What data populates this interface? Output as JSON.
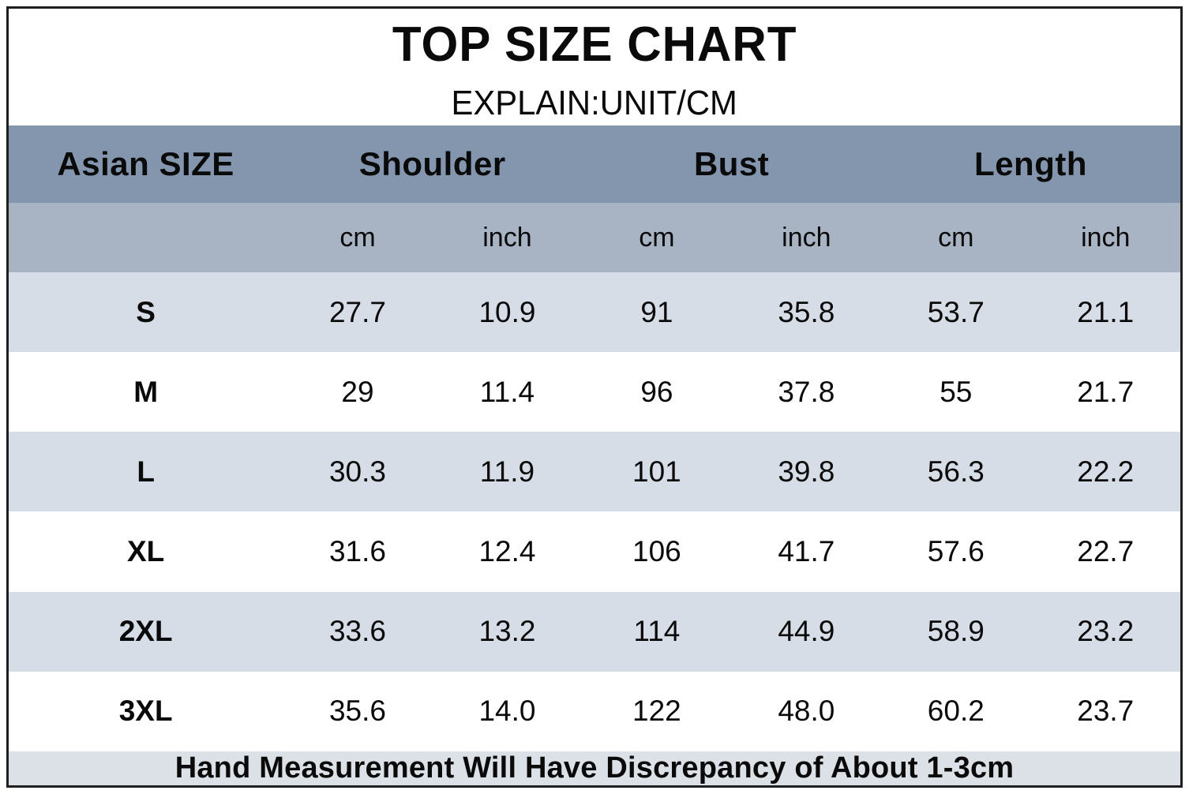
{
  "title": "TOP SIZE CHART",
  "subtitle": "EXPLAIN:UNIT/CM",
  "table": {
    "size_column_header": "Asian SIZE",
    "groups": [
      "Shoulder",
      "Bust",
      "Length"
    ],
    "units": [
      "cm",
      "inch",
      "cm",
      "inch",
      "cm",
      "inch"
    ],
    "rows": [
      {
        "size": "S",
        "values": [
          "27.7",
          "10.9",
          "91",
          "35.8",
          "53.7",
          "21.1"
        ]
      },
      {
        "size": "M",
        "values": [
          "29",
          "11.4",
          "96",
          "37.8",
          "55",
          "21.7"
        ]
      },
      {
        "size": "L",
        "values": [
          "30.3",
          "11.9",
          "101",
          "39.8",
          "56.3",
          "22.2"
        ]
      },
      {
        "size": "XL",
        "values": [
          "31.6",
          "12.4",
          "106",
          "41.7",
          "57.6",
          "22.7"
        ]
      },
      {
        "size": "2XL",
        "values": [
          "33.6",
          "13.2",
          "114",
          "44.9",
          "58.9",
          "23.2"
        ]
      },
      {
        "size": "3XL",
        "values": [
          "35.6",
          "14.0",
          "122",
          "48.0",
          "60.2",
          "23.7"
        ]
      }
    ],
    "footer_note": "Hand Measurement Will Have Discrepancy of About 1-3cm"
  },
  "chart_data": {
    "type": "table",
    "title": "TOP SIZE CHART",
    "subtitle": "EXPLAIN:UNIT/CM",
    "columns": [
      "Asian SIZE",
      "Shoulder cm",
      "Shoulder inch",
      "Bust cm",
      "Bust inch",
      "Length cm",
      "Length inch"
    ],
    "rows": [
      [
        "S",
        27.7,
        10.9,
        91,
        35.8,
        53.7,
        21.1
      ],
      [
        "M",
        29,
        11.4,
        96,
        37.8,
        55,
        21.7
      ],
      [
        "L",
        30.3,
        11.9,
        101,
        39.8,
        56.3,
        22.2
      ],
      [
        "XL",
        31.6,
        12.4,
        106,
        41.7,
        57.6,
        22.7
      ],
      [
        "2XL",
        33.6,
        13.2,
        114,
        44.9,
        58.9,
        23.2
      ],
      [
        "3XL",
        35.6,
        14.0,
        122,
        48.0,
        60.2,
        23.7
      ]
    ],
    "footer": "Hand Measurement Will Have Discrepancy of About 1-3cm"
  },
  "colors": {
    "header_bg": "#8396ae",
    "unit_row_bg": "#a8b4c4",
    "alt_row_bg": "#d6dde7",
    "row_bg": "#ffffff",
    "footer_bg": "#dce1e7",
    "text": "#0a0a0a",
    "border": "#1f1f1f"
  }
}
